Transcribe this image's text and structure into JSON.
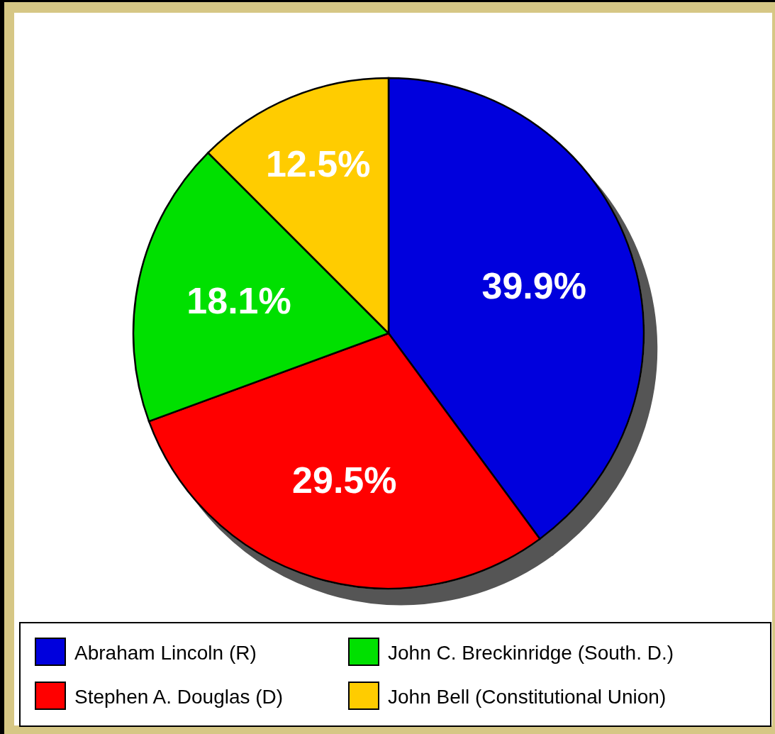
{
  "chart_data": {
    "type": "pie",
    "categories": [
      "Abraham Lincoln (R)",
      "Stephen A. Douglas (D)",
      "John C. Breckinridge (South. D.)",
      "John Bell (Constitutional Union)"
    ],
    "values": [
      39.9,
      29.5,
      18.1,
      12.5
    ],
    "colors": [
      "#0000dd",
      "#ff0000",
      "#00e000",
      "#ffcc00"
    ],
    "value_labels": [
      "39.9%",
      "29.5%",
      "18.1%",
      "12.5%"
    ],
    "legend": "bottom"
  }
}
